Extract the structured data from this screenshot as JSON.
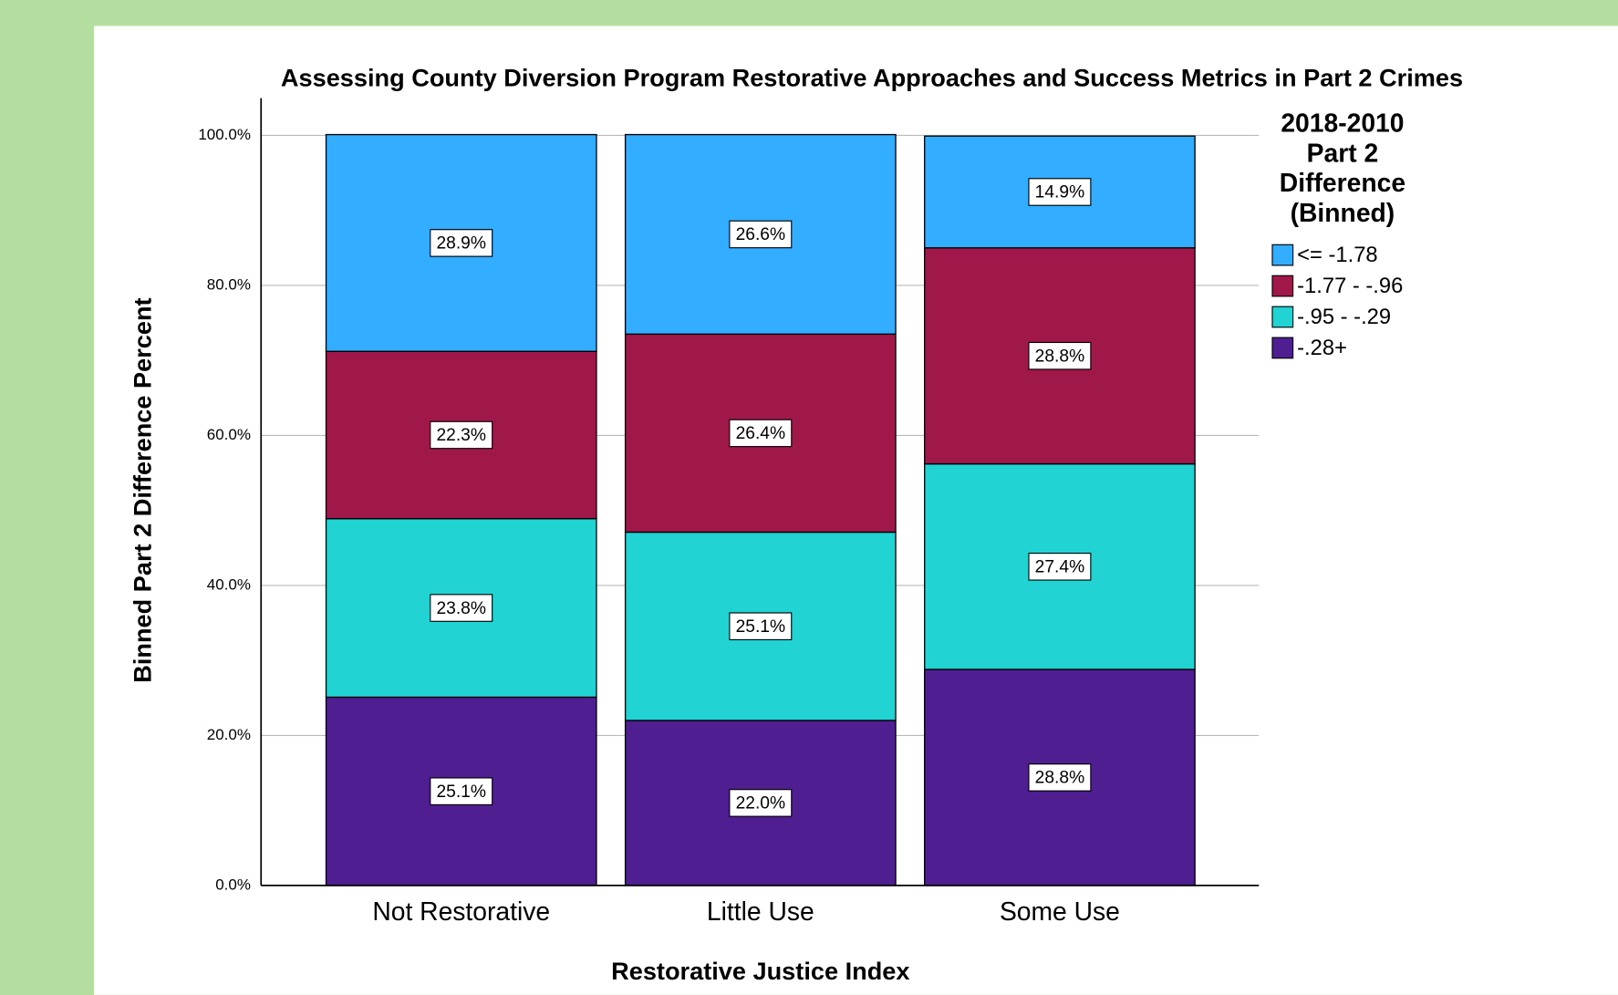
{
  "chart_data": {
    "type": "stacked_bar",
    "title": "Assessing County Diversion Program Restorative Approaches and Success Metrics in Part 2 Crimes",
    "x_label": "Restorative Justice Index",
    "y_label": "Binned Part 2 Difference Percent",
    "legend_title": [
      "2018-2010",
      "Part 2",
      "Difference",
      "(Binned)"
    ],
    "categories": [
      "Not Restorative",
      "Little Use",
      "Some Use"
    ],
    "series": [
      {
        "name": "<= -1.78",
        "color": "#33adff",
        "values": [
          28.9,
          26.6,
          14.9
        ],
        "value_labels": [
          "28.9%",
          "26.6%",
          "14.9%"
        ]
      },
      {
        "name": "-1.77 - -.96",
        "color": "#a0174a",
        "values": [
          22.3,
          26.4,
          28.8
        ],
        "value_labels": [
          "22.3%",
          "26.4%",
          "28.8%"
        ]
      },
      {
        "name": "-.95 - -.29",
        "color": "#22d3d3",
        "values": [
          23.8,
          25.1,
          27.4
        ],
        "value_labels": [
          "23.8%",
          "25.1%",
          "27.4%"
        ]
      },
      {
        "name": "-.28+",
        "color": "#4f1f91",
        "values": [
          25.1,
          22.0,
          28.8
        ],
        "value_labels": [
          "25.1%",
          "22.0%",
          "28.8%"
        ]
      }
    ],
    "ylim": [
      0,
      100
    ],
    "yticks": [
      {
        "value": 0,
        "label": "0.0%"
      },
      {
        "value": 20,
        "label": "20.0%"
      },
      {
        "value": 40,
        "label": "40.0%"
      },
      {
        "value": 60,
        "label": "60.0%"
      },
      {
        "value": 80,
        "label": "80.0%"
      },
      {
        "value": 100,
        "label": "100.0%"
      }
    ],
    "grid": true,
    "legend": "right"
  }
}
